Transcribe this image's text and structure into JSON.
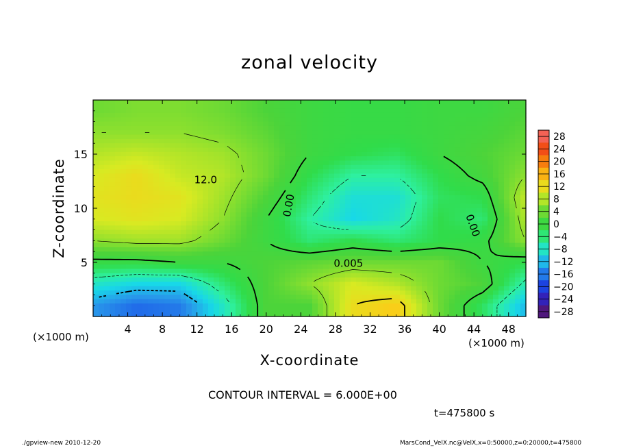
{
  "chart_data": {
    "type": "heatmap",
    "title": "zonal velocity",
    "xlabel": "X-coordinate",
    "ylabel": "Z-coordinate",
    "x_unit_left": "(×1000 m)",
    "x_unit_right": "(×1000 m)",
    "xlim": [
      0,
      50
    ],
    "ylim": [
      0,
      20
    ],
    "x_ticks": [
      4,
      8,
      12,
      16,
      20,
      24,
      28,
      32,
      36,
      40,
      44,
      48
    ],
    "x_tick_labels": [
      "4",
      "8",
      "12",
      "16",
      "20",
      "24",
      "28",
      "32",
      "36",
      "40",
      "44",
      "48"
    ],
    "y_ticks": [
      5,
      10,
      15
    ],
    "y_tick_labels": [
      "5",
      "10",
      "15"
    ],
    "colorbar": {
      "min": -30,
      "max": 30,
      "labels": [
        "28",
        "24",
        "20",
        "16",
        "12",
        "8",
        "4",
        "0",
        "−4",
        "−8",
        "−12",
        "−16",
        "−20",
        "−24",
        "−28"
      ],
      "values": [
        28,
        24,
        20,
        16,
        12,
        8,
        4,
        0,
        -4,
        -8,
        -12,
        -16,
        -20,
        -24,
        -28
      ]
    },
    "contour_labels": [
      "12.0",
      "0.00",
      "0.00",
      "0.005"
    ],
    "grid": {
      "x": [
        0,
        5,
        10,
        15,
        20,
        25,
        30,
        35,
        40,
        45,
        50
      ],
      "z": [
        1,
        3,
        5,
        7,
        9,
        11,
        13,
        15,
        17,
        19
      ],
      "values": [
        [
          -14,
          -17,
          -16,
          -8,
          2,
          2,
          12,
          14,
          4,
          -3,
          -12
        ],
        [
          -8,
          -10,
          -10,
          -4,
          2,
          6,
          10,
          8,
          4,
          2,
          -7
        ],
        [
          -1,
          -1,
          0,
          0,
          2,
          3,
          4,
          4,
          4,
          0,
          -2
        ],
        [
          6,
          7,
          7,
          4,
          0,
          -4,
          -2,
          -4,
          -2,
          -1,
          6
        ],
        [
          10,
          11,
          10,
          6,
          0,
          -6,
          -10,
          -8,
          -2,
          -4,
          8
        ],
        [
          11,
          12,
          11,
          7,
          2,
          -4,
          -9,
          -9,
          -3,
          -2,
          9
        ],
        [
          10,
          12,
          9,
          8,
          4,
          -2,
          -6,
          -6,
          -2,
          1,
          6
        ],
        [
          8,
          9,
          8,
          7,
          4,
          0,
          -2,
          -3,
          0,
          2,
          4
        ],
        [
          6,
          6,
          6,
          5,
          3,
          0,
          -1,
          -1,
          0,
          1,
          3
        ],
        [
          4,
          5,
          5,
          4,
          2,
          0,
          -1,
          -1,
          0,
          0,
          2
        ]
      ]
    }
  },
  "annotation": {
    "contour_interval": "CONTOUR INTERVAL = 6.000E+00",
    "time": "t=475800 s"
  },
  "footer": {
    "left": "./gpview-new  2010-12-20",
    "right": "MarsCond_VelX.nc@VelX,x=0:50000,z=0:20000,t=475800"
  }
}
